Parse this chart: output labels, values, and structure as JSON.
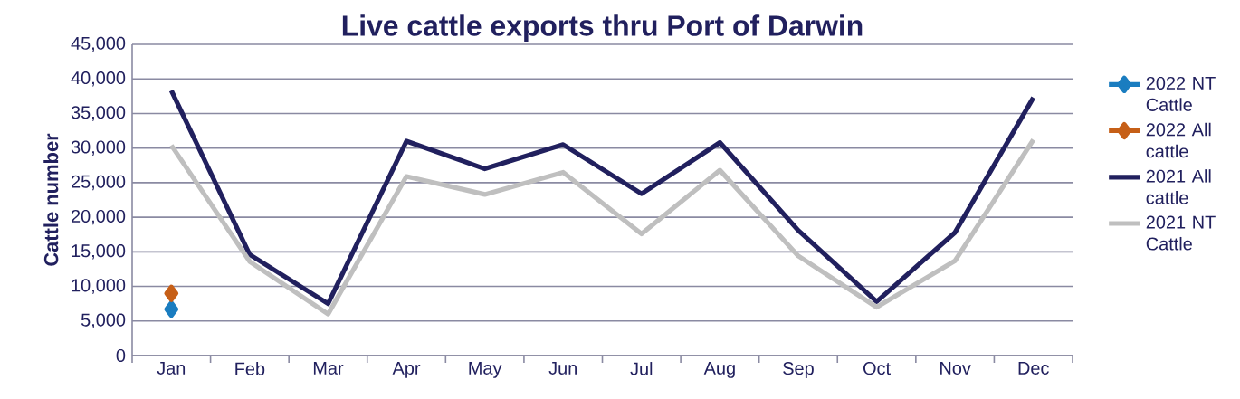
{
  "chart_data": {
    "type": "line",
    "title": "Live cattle exports thru Port of Darwin",
    "ylabel": "Cattle number",
    "categories": [
      "Jan",
      "Feb",
      "Mar",
      "Apr",
      "May",
      "Jun",
      "Jul",
      "Aug",
      "Sep",
      "Oct",
      "Nov",
      "Dec"
    ],
    "series": [
      {
        "name": "2022 NT Cattle",
        "color": "#1a7dc0",
        "marker": "diamond",
        "values": [
          6700,
          null,
          null,
          null,
          null,
          null,
          null,
          null,
          null,
          null,
          null,
          null
        ]
      },
      {
        "name": "2022 All cattle",
        "color": "#c65f17",
        "marker": "diamond",
        "values": [
          9000,
          null,
          null,
          null,
          null,
          null,
          null,
          null,
          null,
          null,
          null,
          null
        ]
      },
      {
        "name": "2021 All cattle",
        "color": "#21205e",
        "marker": "none",
        "values": [
          38300,
          14600,
          7500,
          31000,
          27000,
          30500,
          23400,
          30800,
          18100,
          7800,
          17800,
          37300
        ]
      },
      {
        "name": "2021 NT Cattle",
        "color": "#bfbfbf",
        "marker": "none",
        "values": [
          30400,
          13600,
          6000,
          25900,
          23300,
          26500,
          17600,
          26800,
          14400,
          7000,
          13700,
          31200
        ]
      }
    ],
    "ylim": [
      0,
      45000
    ],
    "yticks": [
      0,
      {
        "value": 5000,
        "label": "5,000"
      },
      {
        "value": 10000,
        "label": "10,000"
      },
      {
        "value": 15000,
        "label": "15,000"
      },
      {
        "value": 20000,
        "label": "20,000"
      },
      {
        "value": 25000,
        "label": "25,000"
      },
      {
        "value": 30000,
        "label": "30,000"
      },
      {
        "value": 35000,
        "label": "35,000"
      },
      {
        "value": 40000,
        "label": "40,000"
      },
      {
        "value": 45000,
        "label": "45,000"
      }
    ],
    "grid": "y",
    "legend": "right"
  }
}
